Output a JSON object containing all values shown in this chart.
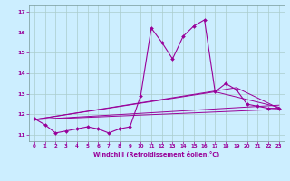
{
  "xlabel": "Windchill (Refroidissement éolien,°C)",
  "bg_color": "#cceeff",
  "line_color": "#990099",
  "grid_color": "#aacccc",
  "xlim": [
    -0.5,
    23.5
  ],
  "ylim": [
    10.7,
    17.3
  ],
  "xticks": [
    0,
    1,
    2,
    3,
    4,
    5,
    6,
    7,
    8,
    9,
    10,
    11,
    12,
    13,
    14,
    15,
    16,
    17,
    18,
    19,
    20,
    21,
    22,
    23
  ],
  "yticks": [
    11,
    12,
    13,
    14,
    15,
    16,
    17
  ],
  "main_x": [
    0,
    1,
    2,
    3,
    4,
    5,
    6,
    7,
    8,
    9,
    10,
    11,
    12,
    13,
    14,
    15,
    16,
    17,
    18,
    19,
    20,
    21,
    22,
    23
  ],
  "main_y": [
    11.8,
    11.5,
    11.1,
    11.2,
    11.3,
    11.4,
    11.3,
    11.1,
    11.3,
    11.4,
    12.9,
    16.2,
    15.5,
    14.7,
    15.8,
    16.3,
    16.6,
    13.1,
    13.5,
    13.2,
    12.5,
    12.4,
    12.3,
    12.3
  ],
  "diag_lines": [
    {
      "x": [
        0,
        23
      ],
      "y": [
        11.75,
        12.25
      ]
    },
    {
      "x": [
        0,
        23
      ],
      "y": [
        11.75,
        12.45
      ]
    },
    {
      "x": [
        0,
        17,
        23
      ],
      "y": [
        11.75,
        13.1,
        12.35
      ]
    },
    {
      "x": [
        0,
        19,
        23
      ],
      "y": [
        11.75,
        13.3,
        12.3
      ]
    }
  ]
}
